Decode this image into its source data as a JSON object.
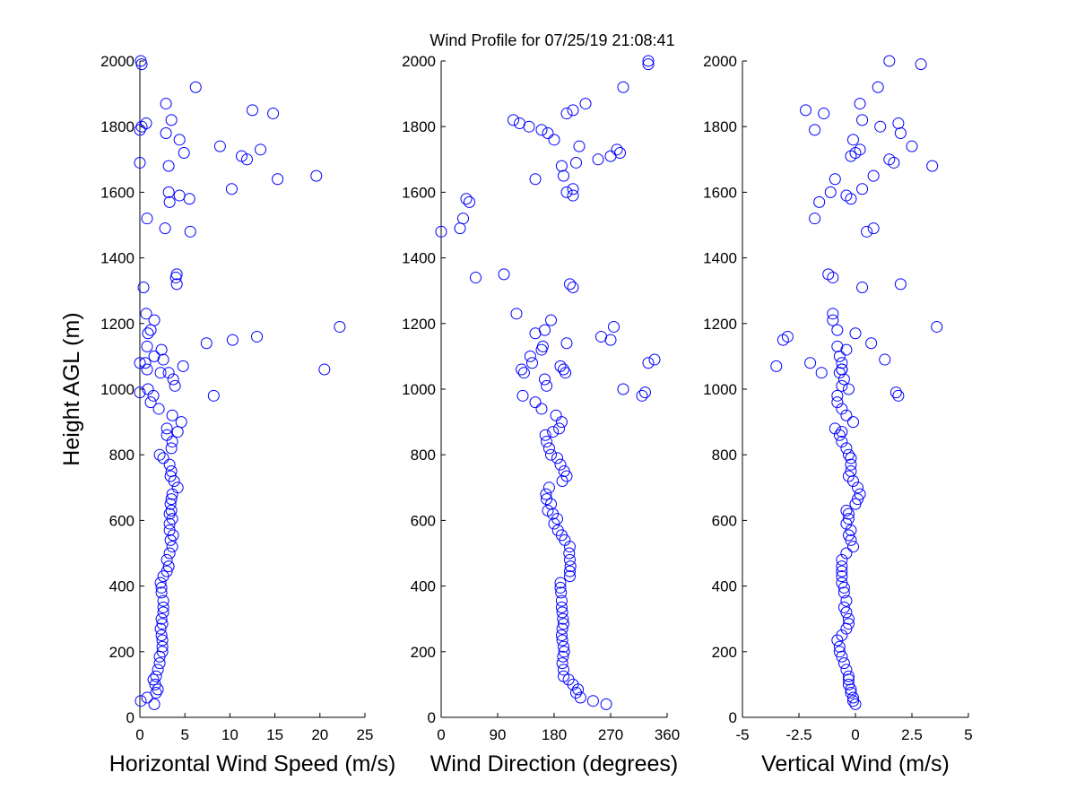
{
  "figure_title": "Wind Profile for  07/25/19 21:08:41",
  "marker_color": "#0000ff",
  "chart_data": [
    {
      "type": "scatter",
      "name": "speed",
      "xlabel": "Horizontal Wind Speed (m/s)",
      "ylabel": "Height AGL (m)",
      "xlim": [
        0,
        25
      ],
      "ylim": [
        0,
        2000
      ],
      "xticks": [
        0,
        5,
        10,
        15,
        20,
        25
      ],
      "xtick_labels": [
        "0",
        "5",
        "10",
        "15",
        "20",
        "25"
      ],
      "yticks": [
        0,
        200,
        400,
        600,
        800,
        1000,
        1200,
        1400,
        1600,
        1800,
        2000
      ],
      "ytick_labels": [
        "0",
        "200",
        "400",
        "600",
        "800",
        "1000",
        "1200",
        "1400",
        "1600",
        "1800",
        "2000"
      ],
      "x": [
        1.6,
        0.1,
        0.8,
        1.8,
        2.0,
        1.7,
        1.5,
        1.8,
        2.0,
        2.2,
        2.2,
        2.5,
        2.5,
        2.5,
        2.4,
        2.3,
        2.5,
        2.4,
        2.6,
        2.6,
        2.6,
        2.4,
        2.4,
        2.3,
        2.6,
        3.0,
        3.2,
        3.0,
        3.3,
        3.6,
        3.4,
        3.7,
        3.3,
        3.3,
        3.6,
        3.3,
        3.5,
        3.4,
        3.5,
        3.6,
        4.2,
        3.8,
        3.4,
        3.5,
        3.3,
        2.6,
        2.2,
        3.5,
        3.6,
        3.0,
        4.2,
        3.0,
        4.6,
        3.6,
        2.1,
        1.2,
        1.5,
        3.9,
        3.7,
        2.3,
        0.8,
        0.6,
        1.6,
        2.4,
        0.8,
        0.9,
        1.2,
        1.6,
        0.7,
        4.0,
        4.1,
        5.6,
        2.8,
        0.8,
        3.3,
        5.5,
        4.4,
        3.2,
        10.2,
        15.3,
        19.6,
        3.2,
        0.0,
        11.9,
        11.3,
        4.9,
        13.4,
        8.9,
        4.4,
        2.9,
        0.0,
        0.2,
        0.7,
        3.5,
        14.8,
        12.5,
        2.9,
        6.2,
        0.2,
        0.1,
        0.0,
        8.2,
        0.9,
        0.4,
        4.1,
        3.2,
        20.5,
        4.8,
        0.0,
        2.6,
        7.4,
        10.3,
        13.0,
        22.2
      ],
      "y": [
        40,
        50,
        60,
        75,
        85,
        100,
        115,
        125,
        145,
        165,
        185,
        200,
        215,
        235,
        250,
        270,
        285,
        300,
        320,
        335,
        355,
        380,
        395,
        410,
        430,
        445,
        460,
        480,
        500,
        520,
        540,
        555,
        570,
        590,
        605,
        620,
        630,
        650,
        665,
        680,
        700,
        720,
        735,
        750,
        770,
        790,
        800,
        820,
        840,
        860,
        870,
        880,
        900,
        920,
        940,
        960,
        980,
        1010,
        1030,
        1050,
        1060,
        1080,
        1100,
        1120,
        1130,
        1170,
        1180,
        1210,
        1230,
        1340,
        1350,
        1480,
        1490,
        1520,
        1570,
        1580,
        1590,
        1600,
        1610,
        1640,
        1650,
        1680,
        1690,
        1700,
        1710,
        1720,
        1730,
        1740,
        1760,
        1780,
        1790,
        1800,
        1810,
        1820,
        1840,
        1850,
        1870,
        1920,
        1990,
        2000,
        990,
        980,
        1000,
        1310,
        1320,
        1050,
        1060,
        1070,
        1080,
        1090,
        1140,
        1150,
        1160,
        1190
      ]
    },
    {
      "type": "scatter",
      "name": "direction",
      "xlabel": "Wind Direction (degrees)",
      "ylabel": "",
      "xlim": [
        0,
        360
      ],
      "ylim": [
        0,
        2000
      ],
      "xticks": [
        0,
        90,
        180,
        270,
        360
      ],
      "xtick_labels": [
        "0",
        "90",
        "180",
        "270",
        "360"
      ],
      "yticks": [
        0,
        200,
        400,
        600,
        800,
        1000,
        1200,
        1400,
        1600,
        1800,
        2000
      ],
      "ytick_labels": [
        "0",
        "200",
        "400",
        "600",
        "800",
        "1000",
        "1200",
        "1400",
        "1600",
        "1800",
        "2000"
      ],
      "x": [
        263,
        242,
        222,
        215,
        218,
        210,
        203,
        195,
        195,
        193,
        194,
        196,
        195,
        193,
        192,
        193,
        195,
        194,
        193,
        192,
        192,
        191,
        190,
        190,
        205,
        205,
        206,
        205,
        204,
        205,
        197,
        192,
        186,
        180,
        185,
        178,
        170,
        175,
        168,
        167,
        172,
        193,
        200,
        196,
        190,
        185,
        175,
        172,
        168,
        166,
        178,
        188,
        192,
        183,
        160,
        150,
        130,
        168,
        165,
        132,
        128,
        145,
        142,
        160,
        162,
        150,
        165,
        175,
        120,
        55,
        100,
        0,
        30,
        35,
        45,
        40,
        210,
        200,
        210,
        150,
        195,
        192,
        215,
        250,
        270,
        285,
        280,
        220,
        180,
        170,
        160,
        140,
        125,
        115,
        200,
        210,
        230,
        290,
        330,
        330,
        325,
        320,
        290,
        210,
        205,
        198,
        195,
        190,
        330,
        340,
        200,
        270,
        255,
        275
      ],
      "y": [
        40,
        50,
        60,
        75,
        85,
        100,
        115,
        125,
        145,
        165,
        185,
        200,
        215,
        235,
        250,
        270,
        285,
        300,
        320,
        335,
        355,
        380,
        395,
        410,
        430,
        445,
        460,
        480,
        500,
        520,
        540,
        555,
        570,
        590,
        605,
        620,
        630,
        650,
        665,
        680,
        700,
        720,
        735,
        750,
        770,
        790,
        800,
        820,
        840,
        860,
        870,
        880,
        900,
        920,
        940,
        960,
        980,
        1010,
        1030,
        1050,
        1060,
        1080,
        1100,
        1120,
        1130,
        1170,
        1180,
        1210,
        1230,
        1340,
        1350,
        1480,
        1490,
        1520,
        1570,
        1580,
        1590,
        1600,
        1610,
        1640,
        1650,
        1680,
        1690,
        1700,
        1710,
        1720,
        1730,
        1740,
        1760,
        1780,
        1790,
        1800,
        1810,
        1820,
        1840,
        1850,
        1870,
        1920,
        1990,
        2000,
        990,
        980,
        1000,
        1310,
        1320,
        1050,
        1060,
        1070,
        1080,
        1090,
        1140,
        1150,
        1160,
        1190
      ]
    },
    {
      "type": "scatter",
      "name": "vertical",
      "xlabel": "Vertical Wind (m/s)",
      "ylabel": "",
      "xlim": [
        -5,
        5
      ],
      "ylim": [
        0,
        2000
      ],
      "xticks": [
        -5,
        -2.5,
        0,
        2.5,
        5
      ],
      "xtick_labels": [
        "-5",
        "-2.5",
        "0",
        "2.5",
        "5"
      ],
      "yticks": [
        0,
        200,
        400,
        600,
        800,
        1000,
        1200,
        1400,
        1600,
        1800,
        2000
      ],
      "ytick_labels": [
        "0",
        "200",
        "400",
        "600",
        "800",
        "1000",
        "1200",
        "1400",
        "1600",
        "1800",
        "2000"
      ],
      "x": [
        0.0,
        -0.1,
        -0.1,
        -0.2,
        -0.2,
        -0.3,
        -0.3,
        -0.3,
        -0.4,
        -0.5,
        -0.6,
        -0.7,
        -0.7,
        -0.8,
        -0.6,
        -0.4,
        -0.3,
        -0.3,
        -0.4,
        -0.5,
        -0.4,
        -0.5,
        -0.5,
        -0.6,
        -0.6,
        -0.6,
        -0.6,
        -0.6,
        -0.4,
        -0.1,
        -0.2,
        -0.3,
        -0.2,
        -0.4,
        -0.3,
        -0.3,
        -0.4,
        0.0,
        0.1,
        0.2,
        0.1,
        -0.1,
        -0.3,
        -0.2,
        -0.2,
        -0.2,
        -0.3,
        -0.4,
        -0.6,
        -0.7,
        -0.6,
        -0.9,
        -0.1,
        -0.4,
        -0.6,
        -0.8,
        -0.8,
        -0.6,
        -0.5,
        -0.7,
        -0.6,
        -0.6,
        -0.7,
        -0.4,
        -0.8,
        0.0,
        -0.8,
        -1.0,
        -1.0,
        -1.0,
        -1.2,
        0.5,
        0.8,
        -1.8,
        -1.6,
        -0.2,
        -0.4,
        -1.1,
        0.3,
        -0.9,
        0.8,
        3.4,
        1.7,
        1.5,
        -0.2,
        0.0,
        0.2,
        2.5,
        -0.1,
        2.0,
        -1.8,
        1.1,
        1.9,
        0.3,
        -1.4,
        -2.2,
        0.2,
        1.0,
        2.9,
        1.5,
        1.8,
        1.9,
        -0.3,
        0.3,
        2.0,
        -1.5,
        -0.6,
        -3.5,
        -2.0,
        1.3,
        0.7,
        -3.2,
        -3.0,
        3.6
      ],
      "y": [
        40,
        50,
        60,
        75,
        85,
        100,
        115,
        125,
        145,
        165,
        185,
        200,
        215,
        235,
        250,
        270,
        285,
        300,
        320,
        335,
        355,
        380,
        395,
        410,
        430,
        445,
        460,
        480,
        500,
        520,
        540,
        555,
        570,
        590,
        605,
        620,
        630,
        650,
        665,
        680,
        700,
        720,
        735,
        750,
        770,
        790,
        800,
        820,
        840,
        860,
        870,
        880,
        900,
        920,
        940,
        960,
        980,
        1010,
        1030,
        1050,
        1060,
        1080,
        1100,
        1120,
        1130,
        1170,
        1180,
        1210,
        1230,
        1340,
        1350,
        1480,
        1490,
        1520,
        1570,
        1580,
        1590,
        1600,
        1610,
        1640,
        1650,
        1680,
        1690,
        1700,
        1710,
        1720,
        1730,
        1740,
        1760,
        1780,
        1790,
        1800,
        1810,
        1820,
        1840,
        1850,
        1870,
        1920,
        1990,
        2000,
        990,
        980,
        1000,
        1310,
        1320,
        1050,
        1060,
        1070,
        1080,
        1090,
        1140,
        1150,
        1160,
        1190
      ]
    }
  ]
}
